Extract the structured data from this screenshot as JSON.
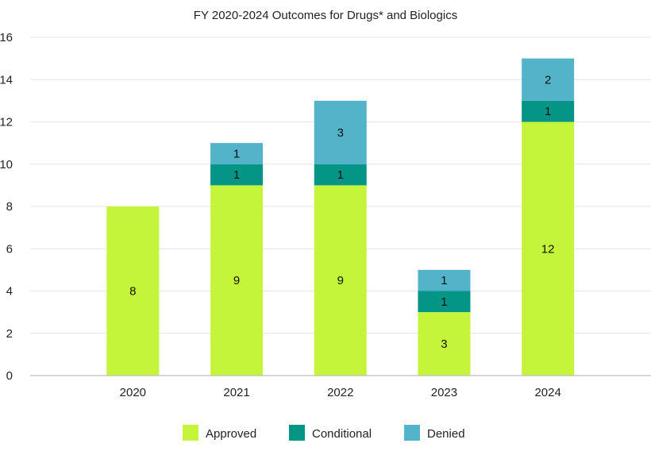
{
  "chart_data": {
    "type": "bar",
    "stacked": true,
    "title": "FY 2020-2024 Outcomes for Drugs* and Biologics",
    "categories": [
      "2020",
      "2021",
      "2022",
      "2023",
      "2024"
    ],
    "series": [
      {
        "name": "Approved",
        "values": [
          8,
          9,
          9,
          3,
          12
        ],
        "color": "#c5f53b"
      },
      {
        "name": "Conditional",
        "values": [
          0,
          1,
          1,
          1,
          1
        ],
        "color": "#049586"
      },
      {
        "name": "Denied",
        "values": [
          0,
          1,
          3,
          1,
          2
        ],
        "color": "#53b3c9"
      }
    ],
    "ylim": [
      0,
      16
    ],
    "yticks": [
      0,
      2,
      4,
      6,
      8,
      10,
      12,
      14,
      16
    ],
    "grid": true,
    "legend": "bottom"
  }
}
